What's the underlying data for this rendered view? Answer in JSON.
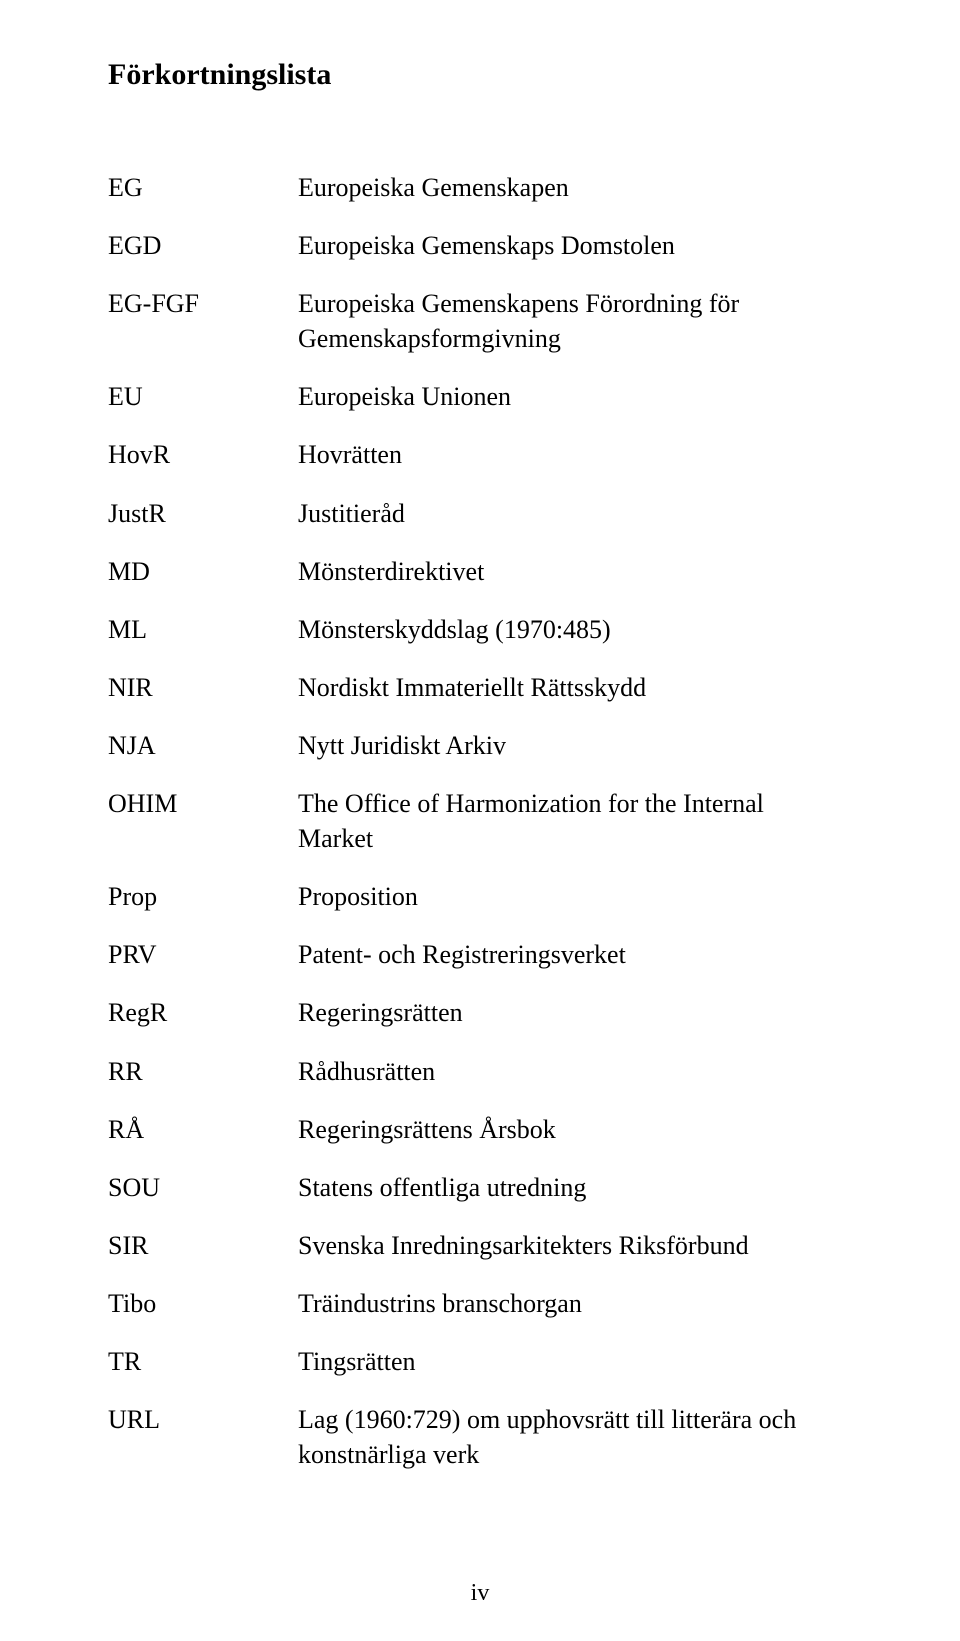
{
  "heading": "Förkortningslista",
  "entries": [
    {
      "abbr": "EG",
      "def": "Europeiska Gemenskapen"
    },
    {
      "abbr": "EGD",
      "def": "Europeiska Gemenskaps Domstolen"
    },
    {
      "abbr": "EG-FGF",
      "def": "Europeiska Gemenskapens Förordning för Gemenskapsformgivning"
    },
    {
      "abbr": "EU",
      "def": "Europeiska Unionen"
    },
    {
      "abbr": "HovR",
      "def": "Hovrätten"
    },
    {
      "abbr": "JustR",
      "def": "Justitieråd"
    },
    {
      "abbr": "MD",
      "def": "Mönsterdirektivet"
    },
    {
      "abbr": "ML",
      "def": "Mönsterskyddslag (1970:485)"
    },
    {
      "abbr": "NIR",
      "def": "Nordiskt Immateriellt Rättsskydd"
    },
    {
      "abbr": "NJA",
      "def": "Nytt Juridiskt Arkiv"
    },
    {
      "abbr": "OHIM",
      "def": "The Office of Harmonization for the Internal Market"
    },
    {
      "abbr": "Prop",
      "def": "Proposition"
    },
    {
      "abbr": "PRV",
      "def": "Patent- och Registreringsverket"
    },
    {
      "abbr": "RegR",
      "def": "Regeringsrätten"
    },
    {
      "abbr": "RR",
      "def": "Rådhusrätten"
    },
    {
      "abbr": "RÅ",
      "def": "Regeringsrättens Årsbok"
    },
    {
      "abbr": "SOU",
      "def": "Statens offentliga utredning"
    },
    {
      "abbr": "SIR",
      "def": "Svenska Inredningsarkitekters Riksförbund"
    },
    {
      "abbr": "Tibo",
      "def": "Träindustrins branschorgan"
    },
    {
      "abbr": "TR",
      "def": "Tingsrätten"
    },
    {
      "abbr": "URL",
      "def": "Lag (1960:729) om upphovsrätt till litterära och konstnärliga verk"
    }
  ],
  "page_number": "iv",
  "colors": {
    "background": "#ffffff",
    "text": "#000000"
  }
}
